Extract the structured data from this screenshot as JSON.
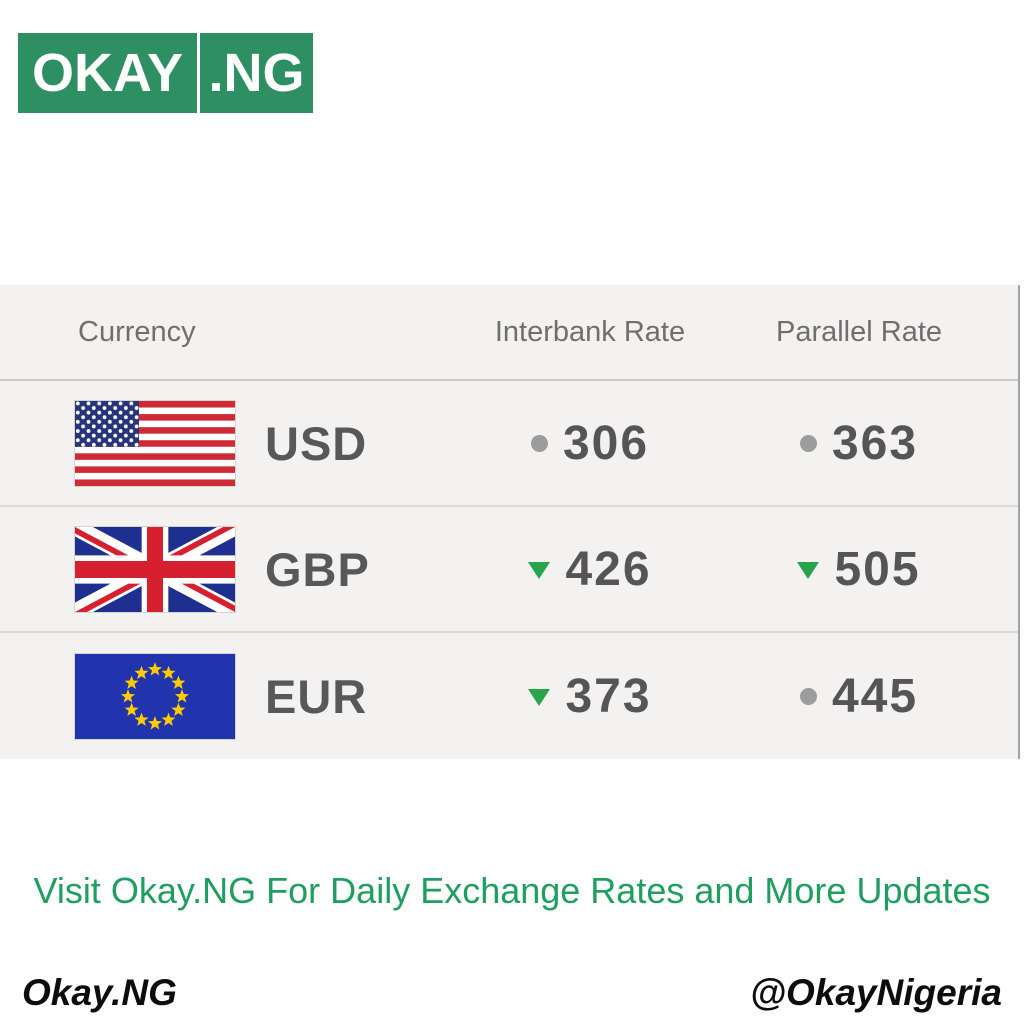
{
  "logo": {
    "okay": "OKAY",
    "ng": ".NG"
  },
  "table": {
    "headers": {
      "currency": "Currency",
      "interbank": "Interbank Rate",
      "parallel": "Parallel Rate"
    },
    "rows": [
      {
        "currency": "USD",
        "flag": "united-states",
        "interbank": {
          "value": "306",
          "trend": "steady"
        },
        "parallel": {
          "value": "363",
          "trend": "steady"
        }
      },
      {
        "currency": "GBP",
        "flag": "united-kingdom",
        "interbank": {
          "value": "426",
          "trend": "down"
        },
        "parallel": {
          "value": "505",
          "trend": "down"
        }
      },
      {
        "currency": "EUR",
        "flag": "european-union",
        "interbank": {
          "value": "373",
          "trend": "down"
        },
        "parallel": {
          "value": "445",
          "trend": "steady"
        }
      }
    ]
  },
  "promo": "Visit Okay.NG For Daily Exchange Rates and More Updates",
  "footer": {
    "site": "Okay.NG",
    "handle": "@OkayNigeria"
  },
  "colors": {
    "brand_green": "#2e8f62",
    "promo_green": "#1f9e60",
    "trend_down_green": "#28a54b",
    "steady_dot_gray": "#9c9c9c"
  }
}
